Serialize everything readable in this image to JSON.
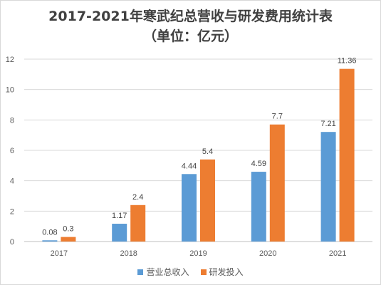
{
  "chart_data": {
    "type": "bar",
    "title": "2017-2021年寒武纪总营收与研发费用统计表",
    "subtitle": "（单位：亿元）",
    "categories": [
      "2017",
      "2018",
      "2019",
      "2020",
      "2021"
    ],
    "series": [
      {
        "name": "营业总收入",
        "values": [
          0.08,
          1.17,
          4.44,
          4.59,
          7.21
        ],
        "labels": [
          "0.08",
          "1.17",
          "4.44",
          "4.59",
          "7.21"
        ],
        "color": "#5b9bd5"
      },
      {
        "name": "研发投入",
        "values": [
          0.3,
          2.4,
          5.4,
          7.7,
          11.36
        ],
        "labels": [
          "0.3",
          "2.4",
          "5.4",
          "7.7",
          "11.36"
        ],
        "color": "#ed7d31"
      }
    ],
    "yticks": [
      "0",
      "2",
      "4",
      "6",
      "8",
      "10",
      "12"
    ],
    "ylim": [
      0,
      12
    ],
    "grid": true,
    "legend_position": "bottom"
  }
}
